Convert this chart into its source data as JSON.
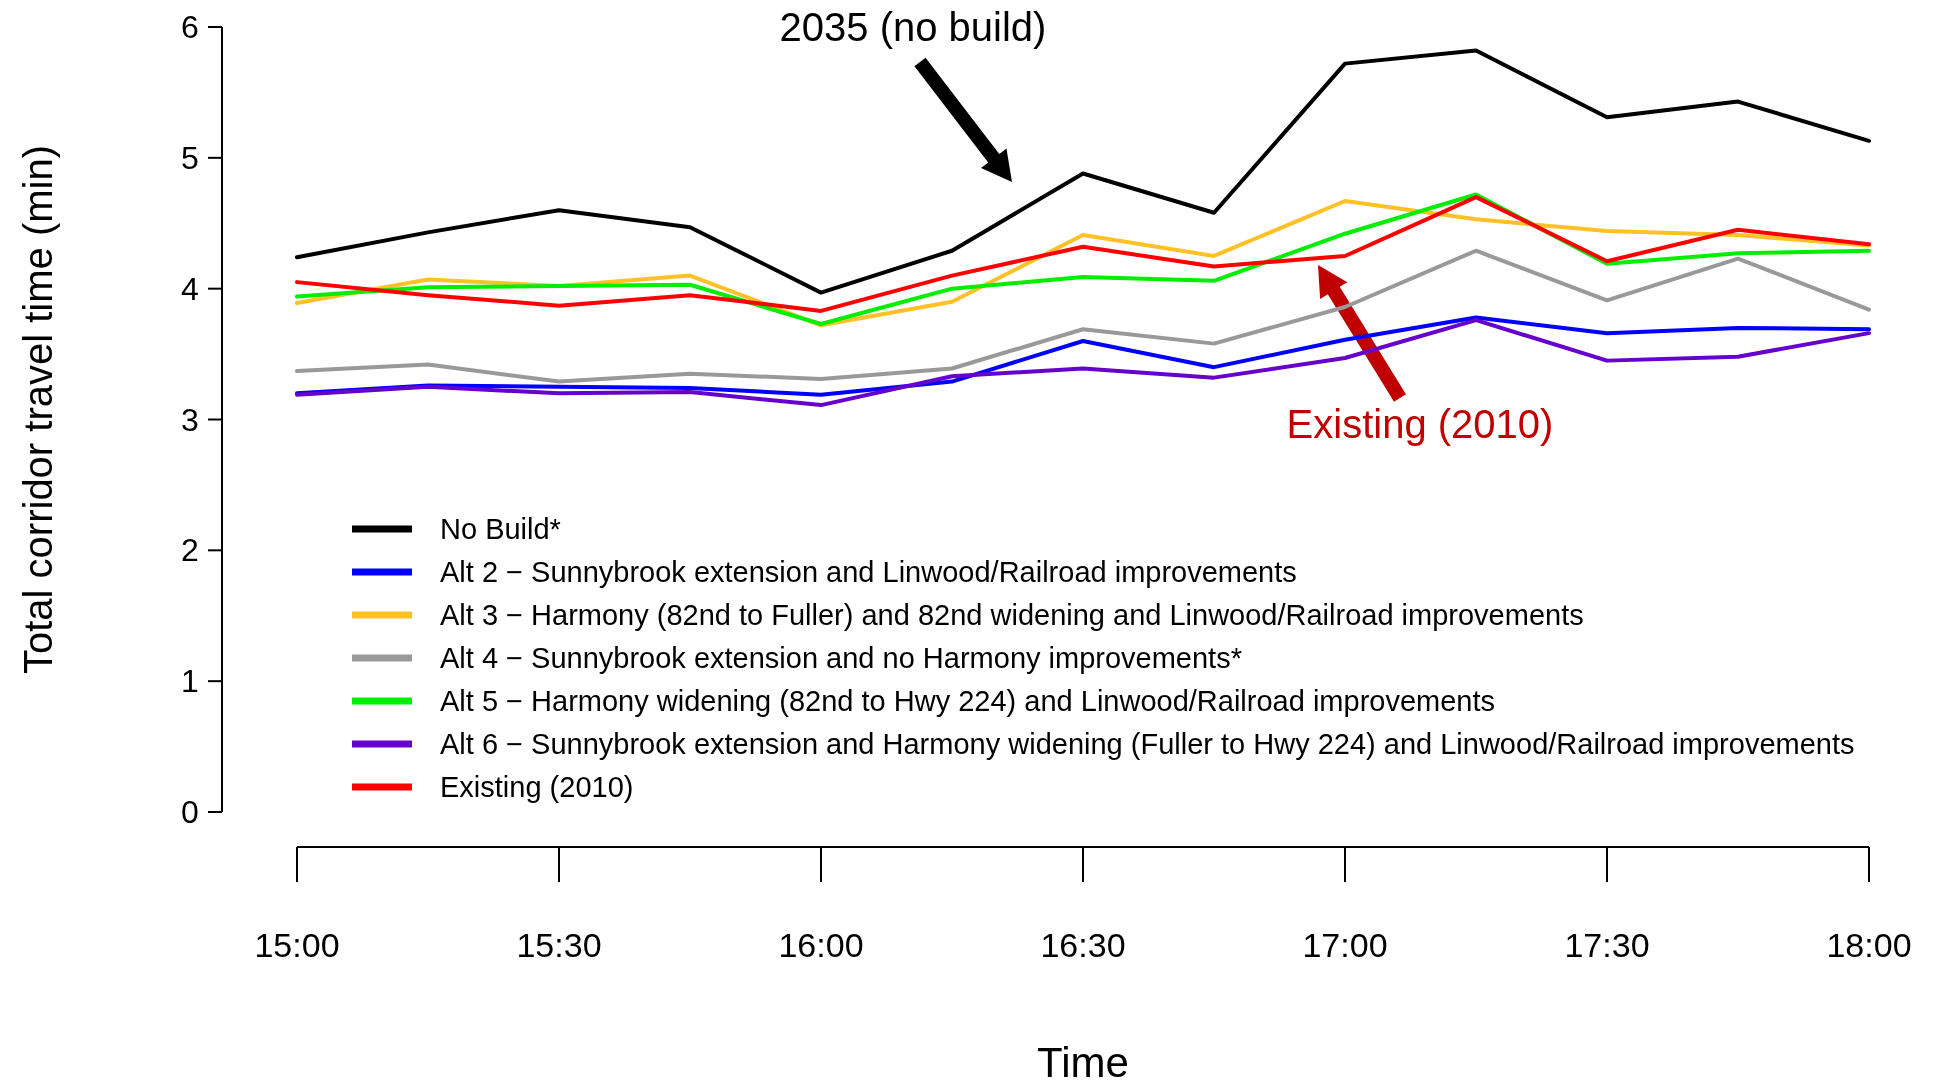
{
  "chart_data": {
    "type": "line",
    "xlabel": "Time",
    "ylabel": "Total corridor travel time (min)",
    "x": [
      15,
      15.25,
      15.5,
      15.75,
      16,
      16.25,
      16.5,
      16.75,
      17,
      17.25,
      17.5,
      17.75,
      18
    ],
    "xlim": [
      15,
      18
    ],
    "xticks": [
      {
        "value": 15,
        "label": "15:00"
      },
      {
        "value": 15.5,
        "label": "15:30"
      },
      {
        "value": 16,
        "label": "16:00"
      },
      {
        "value": 16.5,
        "label": "16:30"
      },
      {
        "value": 17,
        "label": "17:00"
      },
      {
        "value": 17.5,
        "label": "17:30"
      },
      {
        "value": 18,
        "label": "18:00"
      }
    ],
    "ylim": [
      0,
      6
    ],
    "yticks": [
      0,
      1,
      2,
      3,
      4,
      5,
      6
    ],
    "grid": false,
    "legend": "bottom left",
    "marker": "none",
    "line_style": "solid",
    "series": [
      {
        "name": "No Build*",
        "color": "#000000",
        "values": [
          4.24,
          4.43,
          4.6,
          4.47,
          3.97,
          4.29,
          4.88,
          4.58,
          5.72,
          5.82,
          5.31,
          5.43,
          5.13
        ]
      },
      {
        "name": "Alt 2 − Sunnybrook extension and Linwood/Railroad improvements",
        "color": "#0000ff",
        "values": [
          3.2,
          3.26,
          3.25,
          3.24,
          3.19,
          3.29,
          3.6,
          3.4,
          3.61,
          3.78,
          3.66,
          3.7,
          3.69
        ]
      },
      {
        "name": "Alt 3 − Harmony (82nd to Fuller) and 82nd widening and Linwood/Railroad improvements",
        "color": "#ffc125",
        "values": [
          3.89,
          4.07,
          4.02,
          4.1,
          3.72,
          3.9,
          4.41,
          4.25,
          4.67,
          4.53,
          4.44,
          4.41,
          4.33
        ]
      },
      {
        "name": "Alt 4 − Sunnybrook extension and no Harmony improvements*",
        "color": "#999999",
        "values": [
          3.37,
          3.42,
          3.29,
          3.35,
          3.31,
          3.39,
          3.69,
          3.58,
          3.86,
          4.29,
          3.91,
          4.23,
          3.84
        ]
      },
      {
        "name": "Alt 5 − Harmony widening (82nd to Hwy 224) and Linwood/Railroad improvements",
        "color": "#00ee00",
        "values": [
          3.94,
          4.01,
          4.02,
          4.03,
          3.73,
          4.0,
          4.09,
          4.06,
          4.42,
          4.72,
          4.19,
          4.27,
          4.29
        ]
      },
      {
        "name": "Alt 6 − Sunnybrook extension and Harmony widening (Fuller to Hwy 224) and Linwood/Railroad improvements",
        "color": "#6600cc",
        "values": [
          3.19,
          3.25,
          3.2,
          3.21,
          3.11,
          3.33,
          3.39,
          3.32,
          3.47,
          3.76,
          3.45,
          3.48,
          3.66
        ]
      },
      {
        "name": "Existing (2010)",
        "color": "#ff0000",
        "values": [
          4.05,
          3.95,
          3.87,
          3.95,
          3.83,
          4.1,
          4.32,
          4.17,
          4.25,
          4.7,
          4.21,
          4.45,
          4.34
        ]
      }
    ],
    "annotations": [
      "2035 (no build)",
      "Existing (2010)"
    ]
  }
}
